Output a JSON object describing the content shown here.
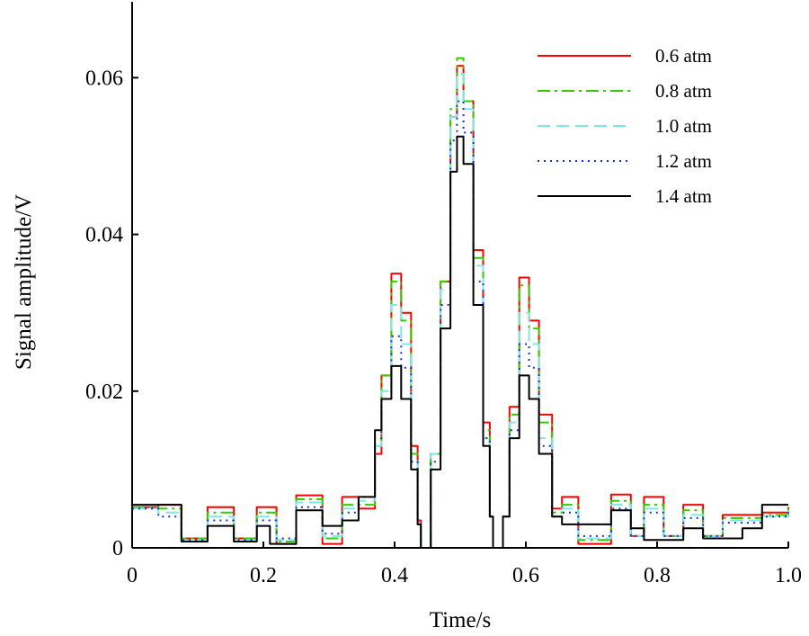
{
  "chart_data": {
    "type": "line",
    "title": "",
    "xlabel": "Time/s",
    "ylabel": "Signal amplitude/V",
    "xlim": [
      0,
      1.0
    ],
    "ylim": [
      0,
      0.069
    ],
    "xticks": [
      0,
      0.2,
      0.4,
      0.6,
      0.8,
      1.0
    ],
    "xtick_labels": [
      "0",
      "0.2",
      "0.4",
      "0.6",
      "0.8",
      "1.0"
    ],
    "yticks": [
      0,
      0.02,
      0.04,
      0.06
    ],
    "ytick_labels": [
      "0",
      "0.02",
      "0.04",
      "0.06"
    ],
    "grid": false,
    "legend_position": "top-right",
    "series": [
      {
        "name": "0.6 atm",
        "color": "#ff0000",
        "dash": "solid",
        "points": [
          [
            0,
            0.0052
          ],
          [
            0.04,
            0.0055
          ],
          [
            0.075,
            0.0012
          ],
          [
            0.115,
            0.0052
          ],
          [
            0.155,
            0.0012
          ],
          [
            0.19,
            0.0052
          ],
          [
            0.22,
            0.0005
          ],
          [
            0.25,
            0.0067
          ],
          [
            0.29,
            0.0005
          ],
          [
            0.32,
            0.0065
          ],
          [
            0.345,
            0.005
          ],
          [
            0.37,
            0.012
          ],
          [
            0.38,
            0.022
          ],
          [
            0.395,
            0.035
          ],
          [
            0.41,
            0.03
          ],
          [
            0.425,
            0.013
          ],
          [
            0.435,
            0.0035
          ],
          [
            0.44,
            0
          ],
          [
            0.448,
            0
          ],
          [
            0.455,
            0.012
          ],
          [
            0.47,
            0.034
          ],
          [
            0.485,
            0.055
          ],
          [
            0.495,
            0.0615
          ],
          [
            0.505,
            0.057
          ],
          [
            0.52,
            0.038
          ],
          [
            0.535,
            0.016
          ],
          [
            0.545,
            0.004
          ],
          [
            0.55,
            0
          ],
          [
            0.558,
            0
          ],
          [
            0.565,
            0.004
          ],
          [
            0.575,
            0.018
          ],
          [
            0.59,
            0.0345
          ],
          [
            0.605,
            0.029
          ],
          [
            0.62,
            0.017
          ],
          [
            0.64,
            0.005
          ],
          [
            0.655,
            0.0065
          ],
          [
            0.68,
            0.0005
          ],
          [
            0.7,
            0.0005
          ],
          [
            0.73,
            0.0068
          ],
          [
            0.76,
            0.0015
          ],
          [
            0.78,
            0.0065
          ],
          [
            0.81,
            0.0015
          ],
          [
            0.84,
            0.0055
          ],
          [
            0.87,
            0.0015
          ],
          [
            0.9,
            0.0042
          ],
          [
            0.93,
            0.0042
          ],
          [
            0.96,
            0.0045
          ],
          [
            1.0,
            0.0052
          ]
        ]
      },
      {
        "name": "0.8 atm",
        "color": "#33cc00",
        "dash": "dashdot",
        "points": [
          [
            0,
            0.0052
          ],
          [
            0.04,
            0.005
          ],
          [
            0.075,
            0.0012
          ],
          [
            0.115,
            0.0045
          ],
          [
            0.155,
            0.0012
          ],
          [
            0.19,
            0.0045
          ],
          [
            0.22,
            0.0008
          ],
          [
            0.25,
            0.0062
          ],
          [
            0.29,
            0.0012
          ],
          [
            0.32,
            0.0055
          ],
          [
            0.345,
            0.0055
          ],
          [
            0.37,
            0.013
          ],
          [
            0.38,
            0.022
          ],
          [
            0.395,
            0.034
          ],
          [
            0.41,
            0.029
          ],
          [
            0.425,
            0.012
          ],
          [
            0.435,
            0.003
          ],
          [
            0.44,
            0
          ],
          [
            0.448,
            0
          ],
          [
            0.455,
            0.012
          ],
          [
            0.47,
            0.034
          ],
          [
            0.485,
            0.056
          ],
          [
            0.495,
            0.0625
          ],
          [
            0.505,
            0.057
          ],
          [
            0.52,
            0.037
          ],
          [
            0.535,
            0.015
          ],
          [
            0.545,
            0.004
          ],
          [
            0.55,
            0
          ],
          [
            0.558,
            0
          ],
          [
            0.565,
            0.004
          ],
          [
            0.575,
            0.017
          ],
          [
            0.59,
            0.0335
          ],
          [
            0.605,
            0.028
          ],
          [
            0.62,
            0.016
          ],
          [
            0.64,
            0.0045
          ],
          [
            0.655,
            0.0055
          ],
          [
            0.68,
            0.001
          ],
          [
            0.7,
            0.001
          ],
          [
            0.73,
            0.006
          ],
          [
            0.76,
            0.0015
          ],
          [
            0.78,
            0.0055
          ],
          [
            0.81,
            0.0015
          ],
          [
            0.84,
            0.0048
          ],
          [
            0.87,
            0.0015
          ],
          [
            0.9,
            0.0038
          ],
          [
            0.93,
            0.0038
          ],
          [
            0.96,
            0.0042
          ],
          [
            1.0,
            0.005
          ]
        ]
      },
      {
        "name": "1.0 atm",
        "color": "#7fe6e6",
        "dash": "dashed",
        "points": [
          [
            0,
            0.005
          ],
          [
            0.04,
            0.0045
          ],
          [
            0.075,
            0.001
          ],
          [
            0.115,
            0.004
          ],
          [
            0.155,
            0.001
          ],
          [
            0.19,
            0.004
          ],
          [
            0.22,
            0.001
          ],
          [
            0.25,
            0.0058
          ],
          [
            0.29,
            0.0015
          ],
          [
            0.32,
            0.005
          ],
          [
            0.345,
            0.006
          ],
          [
            0.37,
            0.013
          ],
          [
            0.38,
            0.02
          ],
          [
            0.395,
            0.031
          ],
          [
            0.41,
            0.026
          ],
          [
            0.425,
            0.011
          ],
          [
            0.435,
            0.003
          ],
          [
            0.44,
            0
          ],
          [
            0.448,
            0
          ],
          [
            0.455,
            0.012
          ],
          [
            0.47,
            0.033
          ],
          [
            0.485,
            0.055
          ],
          [
            0.495,
            0.0605
          ],
          [
            0.505,
            0.056
          ],
          [
            0.52,
            0.036
          ],
          [
            0.535,
            0.014
          ],
          [
            0.545,
            0.004
          ],
          [
            0.55,
            0
          ],
          [
            0.558,
            0
          ],
          [
            0.565,
            0.004
          ],
          [
            0.575,
            0.016
          ],
          [
            0.59,
            0.03
          ],
          [
            0.605,
            0.026
          ],
          [
            0.62,
            0.014
          ],
          [
            0.64,
            0.004
          ],
          [
            0.655,
            0.005
          ],
          [
            0.68,
            0.0012
          ],
          [
            0.7,
            0.0012
          ],
          [
            0.73,
            0.0055
          ],
          [
            0.76,
            0.0015
          ],
          [
            0.78,
            0.005
          ],
          [
            0.81,
            0.0015
          ],
          [
            0.84,
            0.0042
          ],
          [
            0.87,
            0.0015
          ],
          [
            0.9,
            0.0035
          ],
          [
            0.93,
            0.0035
          ],
          [
            0.96,
            0.004
          ],
          [
            1.0,
            0.0048
          ]
        ]
      },
      {
        "name": "1.2 atm",
        "color": "#1133dd",
        "dash": "dotted",
        "points": [
          [
            0,
            0.005
          ],
          [
            0.04,
            0.004
          ],
          [
            0.075,
            0.001
          ],
          [
            0.115,
            0.0035
          ],
          [
            0.155,
            0.001
          ],
          [
            0.19,
            0.0035
          ],
          [
            0.22,
            0.0012
          ],
          [
            0.25,
            0.0052
          ],
          [
            0.29,
            0.0018
          ],
          [
            0.32,
            0.0045
          ],
          [
            0.345,
            0.0065
          ],
          [
            0.37,
            0.014
          ],
          [
            0.38,
            0.019
          ],
          [
            0.395,
            0.027
          ],
          [
            0.41,
            0.023
          ],
          [
            0.425,
            0.011
          ],
          [
            0.435,
            0.003
          ],
          [
            0.44,
            0
          ],
          [
            0.448,
            0
          ],
          [
            0.455,
            0.011
          ],
          [
            0.47,
            0.031
          ],
          [
            0.485,
            0.052
          ],
          [
            0.495,
            0.057
          ],
          [
            0.505,
            0.053
          ],
          [
            0.52,
            0.034
          ],
          [
            0.535,
            0.014
          ],
          [
            0.545,
            0.004
          ],
          [
            0.55,
            0
          ],
          [
            0.558,
            0
          ],
          [
            0.565,
            0.004
          ],
          [
            0.575,
            0.015
          ],
          [
            0.59,
            0.026
          ],
          [
            0.605,
            0.023
          ],
          [
            0.62,
            0.013
          ],
          [
            0.64,
            0.004
          ],
          [
            0.655,
            0.0045
          ],
          [
            0.68,
            0.0015
          ],
          [
            0.7,
            0.0015
          ],
          [
            0.73,
            0.005
          ],
          [
            0.76,
            0.0015
          ],
          [
            0.78,
            0.0045
          ],
          [
            0.81,
            0.0015
          ],
          [
            0.84,
            0.0038
          ],
          [
            0.87,
            0.0015
          ],
          [
            0.9,
            0.0032
          ],
          [
            0.93,
            0.0032
          ],
          [
            0.96,
            0.004
          ],
          [
            1.0,
            0.005
          ]
        ]
      },
      {
        "name": "1.4 atm",
        "color": "#000000",
        "dash": "solid",
        "points": [
          [
            0,
            0.0055
          ],
          [
            0.02,
            0.0055
          ],
          [
            0.075,
            0.0008
          ],
          [
            0.115,
            0.0028
          ],
          [
            0.155,
            0.0008
          ],
          [
            0.19,
            0.0028
          ],
          [
            0.21,
            0.0005
          ],
          [
            0.25,
            0.0048
          ],
          [
            0.29,
            0.0028
          ],
          [
            0.32,
            0.0035
          ],
          [
            0.345,
            0.0065
          ],
          [
            0.37,
            0.015
          ],
          [
            0.38,
            0.019
          ],
          [
            0.395,
            0.0232
          ],
          [
            0.41,
            0.019
          ],
          [
            0.425,
            0.01
          ],
          [
            0.435,
            0.003
          ],
          [
            0.44,
            0
          ],
          [
            0.445,
            0
          ],
          [
            0.455,
            0.01
          ],
          [
            0.47,
            0.028
          ],
          [
            0.485,
            0.048
          ],
          [
            0.495,
            0.0525
          ],
          [
            0.505,
            0.049
          ],
          [
            0.52,
            0.031
          ],
          [
            0.535,
            0.013
          ],
          [
            0.545,
            0.004
          ],
          [
            0.55,
            0
          ],
          [
            0.555,
            0
          ],
          [
            0.565,
            0.004
          ],
          [
            0.575,
            0.014
          ],
          [
            0.59,
            0.022
          ],
          [
            0.605,
            0.019
          ],
          [
            0.62,
            0.012
          ],
          [
            0.64,
            0.004
          ],
          [
            0.655,
            0.003
          ],
          [
            0.68,
            0.003
          ],
          [
            0.73,
            0.0048
          ],
          [
            0.76,
            0.0025
          ],
          [
            0.78,
            0.001
          ],
          [
            0.81,
            0.001
          ],
          [
            0.84,
            0.0025
          ],
          [
            0.87,
            0.0012
          ],
          [
            0.9,
            0.0012
          ],
          [
            0.93,
            0.0025
          ],
          [
            0.96,
            0.0055
          ],
          [
            1.0,
            0.0055
          ]
        ]
      }
    ]
  }
}
